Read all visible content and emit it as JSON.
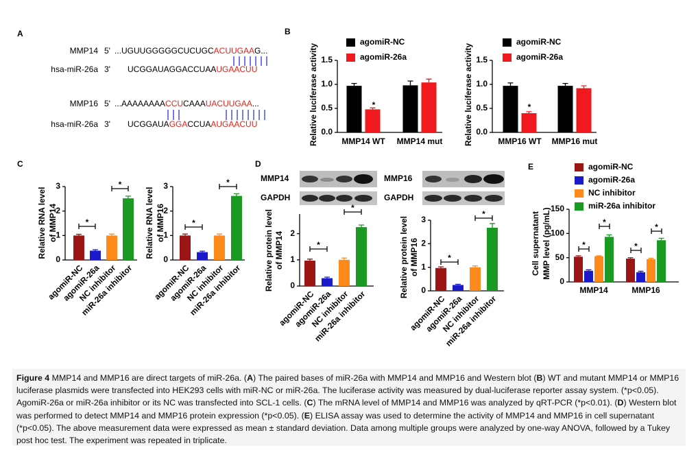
{
  "panel_labels": [
    "A",
    "B",
    "C",
    "D",
    "E"
  ],
  "sequences": [
    {
      "name": "MMP14",
      "end": "5'",
      "segments": [
        {
          "text": "...UGUUGGGGGCUCUGC",
          "color": "#000000"
        },
        {
          "text": "ACUUGAA",
          "color": "#e0241c"
        },
        {
          "text": "G...",
          "color": "#000000"
        }
      ]
    },
    {
      "name": "hsa-miR-26a",
      "end": "3'",
      "segments": [
        {
          "text": "UCGGAUAGGACCUAA",
          "color": "#000000"
        },
        {
          "text": "UGAACUU",
          "color": "#e0241c"
        }
      ]
    },
    {
      "name": "MMP16",
      "end": "5'",
      "segments": [
        {
          "text": "...AAAAAAAA",
          "color": "#000000"
        },
        {
          "text": "CCU",
          "color": "#e0241c"
        },
        {
          "text": "CAAA",
          "color": "#000000"
        },
        {
          "text": "UACUUGAA",
          "color": "#e0241c"
        },
        {
          "text": "...",
          "color": "#000000"
        }
      ]
    },
    {
      "name": "hsa-miR-26a",
      "end": "3'",
      "segments": [
        {
          "text": "UCGGAUA",
          "color": "#000000"
        },
        {
          "text": "GGA",
          "color": "#e0241c"
        },
        {
          "text": "CCUA",
          "color": "#000000"
        },
        {
          "text": "AUGAACUU",
          "color": "#e0241c"
        }
      ]
    }
  ],
  "blots": [
    {
      "protein": "MMP14",
      "control": "GAPDH"
    },
    {
      "protein": "MMP16",
      "control": "GAPDH"
    }
  ],
  "chart_data": [
    {
      "type": "bar",
      "categories": [
        "MMP14 WT",
        "MMP14 mut"
      ],
      "series": [
        {
          "name": "agomiR-NC",
          "color": "#000000",
          "values": [
            0.97,
            0.98
          ],
          "errors": [
            0.05,
            0.09
          ]
        },
        {
          "name": "agomiR-26a",
          "color": "#f0191e",
          "values": [
            0.48,
            1.04
          ],
          "errors": [
            0.03,
            0.07
          ]
        }
      ],
      "ylabel": [
        "Relative luciferase activity"
      ],
      "ylim": [
        0,
        1.5
      ],
      "yticks": [
        {
          "value": 0,
          "label": "0.0"
        },
        0.5,
        {
          "value": 1,
          "label": "1.0"
        },
        1.5
      ],
      "annotations": [
        "*"
      ]
    },
    {
      "type": "bar",
      "categories": [
        "MMP16 WT",
        "MMP16 mut"
      ],
      "series": [
        {
          "name": "agomiR-NC",
          "color": "#000000",
          "values": [
            0.97,
            0.97
          ],
          "errors": [
            0.06,
            0.05
          ]
        },
        {
          "name": "agomiR-26a",
          "color": "#f0191e",
          "values": [
            0.4,
            0.92
          ],
          "errors": [
            0.03,
            0.05
          ]
        }
      ],
      "ylabel": [
        "Relative luciferase activity"
      ],
      "ylim": [
        0,
        1.5
      ],
      "yticks": [
        {
          "value": 0,
          "label": "0.0"
        },
        0.5,
        {
          "value": 1,
          "label": "1.0"
        },
        1.5
      ],
      "annotations": [
        "*"
      ]
    },
    {
      "type": "bar",
      "categories": [
        "agomiR-NC",
        "agomiR-26a",
        "NC inhibitor",
        "miR-26a inhibitor"
      ],
      "values": [
        1.0,
        0.38,
        1.0,
        2.52
      ],
      "errors": [
        0.05,
        0.04,
        0.06,
        0.09
      ],
      "colors": [
        "#9b1515",
        "#1a1acb",
        "#ff8a1c",
        "#1a9a22"
      ],
      "ylabel": [
        "Relative RNA level",
        "of MMP14"
      ],
      "ylim": [
        0,
        3
      ],
      "yticks": [
        0,
        1,
        2,
        3
      ],
      "annotations": [
        "*",
        "*"
      ]
    },
    {
      "type": "bar",
      "categories": [
        "agomiR-NC",
        "agomiR-26a",
        "NC inhibitor",
        "miR-26a inhibitor"
      ],
      "values": [
        1.0,
        0.32,
        1.0,
        2.62
      ],
      "errors": [
        0.06,
        0.04,
        0.06,
        0.09
      ],
      "colors": [
        "#9b1515",
        "#1a1acb",
        "#ff8a1c",
        "#1a9a22"
      ],
      "ylabel": [
        "Relative RNA level",
        "of MMP16"
      ],
      "ylim": [
        0,
        3
      ],
      "yticks": [
        0,
        1,
        2,
        3
      ],
      "annotations": [
        "*",
        "*"
      ]
    },
    {
      "type": "bar",
      "categories": [
        "agomiR-NC",
        "agomiR-26a",
        "NC inhibitor",
        "miR-26a inhibitor"
      ],
      "values": [
        0.97,
        0.3,
        1.0,
        2.25
      ],
      "errors": [
        0.06,
        0.04,
        0.07,
        0.08
      ],
      "colors": [
        "#9b1515",
        "#1a1acb",
        "#ff8a1c",
        "#1a9a22"
      ],
      "ylabel": [
        "Relative protein level",
        "of MMP14"
      ],
      "ylim": [
        0,
        2.75
      ],
      "yticks": [
        0,
        1,
        2
      ],
      "annotations": [
        "*",
        "*"
      ]
    },
    {
      "type": "bar",
      "categories": [
        "agomiR-NC",
        "agomiR-26a",
        "NC inhibitor",
        "miR-26a inhibitor"
      ],
      "values": [
        0.97,
        0.25,
        1.0,
        2.68
      ],
      "errors": [
        0.05,
        0.03,
        0.06,
        0.18
      ],
      "colors": [
        "#9b1515",
        "#1a1acb",
        "#ff8a1c",
        "#1a9a22"
      ],
      "ylabel": [
        "Relative protein level",
        "of MMP16"
      ],
      "ylim": [
        0,
        3
      ],
      "yticks": [
        0,
        1,
        2,
        3
      ],
      "annotations": [
        "*",
        "*"
      ]
    },
    {
      "type": "bar",
      "categories": [
        "MMP14",
        "MMP16"
      ],
      "series": [
        {
          "name": "agomiR-NC",
          "color": "#9b1515",
          "values": [
            52,
            48
          ],
          "errors": [
            2,
            2
          ]
        },
        {
          "name": "agomiR-26a",
          "color": "#1a1acb",
          "values": [
            23,
            20
          ],
          "errors": [
            2,
            2
          ]
        },
        {
          "name": "NC inhibitor",
          "color": "#ff8a1c",
          "values": [
            53,
            47
          ],
          "errors": [
            1,
            2
          ]
        },
        {
          "name": "miR-26a inhibitor",
          "color": "#1a9a22",
          "values": [
            93,
            86
          ],
          "errors": [
            4,
            4
          ]
        }
      ],
      "ylabel": [
        "Cell supernatant",
        "MMP level (pg/mL)"
      ],
      "ylim": [
        0,
        150
      ],
      "yticks": [
        0,
        50,
        100,
        150
      ],
      "annotations": [
        "*",
        "*",
        "*",
        "*"
      ]
    }
  ],
  "caption": [
    {
      "text": "Figure 4",
      "bold": true
    },
    {
      "text": " MMP14 and MMP16 are direct targets of miR-26a. (",
      "bold": false
    },
    {
      "text": "A",
      "bold": true
    },
    {
      "text": ") The paired bases of miR-26a with MMP14 and MMP16 and Western blot (",
      "bold": false
    },
    {
      "text": "B",
      "bold": true
    },
    {
      "text": ") WT and mutant MMP14 or MMP16 luciferase plasmids were transfected into HEK293 cells with miR-NC or miR-26a. The luciferase activity was measured by dual-luciferase reporter assay system. (*p<0.05). AgomiR-26a or miR-26a inhibitor or its NC was transfected into SCL-1 cells. (",
      "bold": false
    },
    {
      "text": "C",
      "bold": true
    },
    {
      "text": ") The mRNA level of MMP14 and MMP16 was analyzed by qRT-PCR (*p<0.01). (",
      "bold": false
    },
    {
      "text": "D",
      "bold": true
    },
    {
      "text": ") Western blot was performed to detect MMP14 and MMP16 protein expression (*p<0.05). (",
      "bold": false
    },
    {
      "text": "E",
      "bold": true
    },
    {
      "text": ") ELISA assay was used to determine the activity of MMP14 and MMP16 in cell supernatant (*p<0.05). The above measurement data were expressed as mean ± standard deviation. Data among multiple groups were analyzed by one-way ANOVA, followed by a Tukey post hoc test. The experiment was repeated in triplicate.",
      "bold": false
    }
  ]
}
